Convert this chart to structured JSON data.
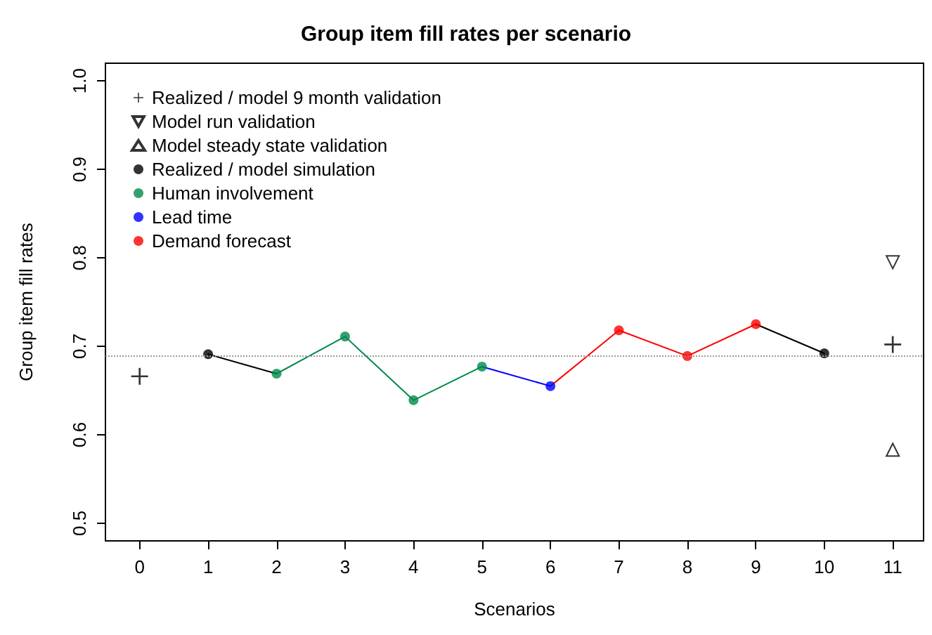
{
  "chart_data": {
    "type": "line",
    "title": "Group item fill rates per scenario",
    "xlabel": "Scenarios",
    "ylabel": "Group item fill rates",
    "xlim": [
      -0.5,
      11.45
    ],
    "xticks": [
      0,
      1,
      2,
      3,
      4,
      5,
      6,
      7,
      8,
      9,
      10,
      11
    ],
    "ylim": [
      0.48,
      1.02
    ],
    "yticks": [
      0.5,
      0.6,
      0.7,
      0.8,
      0.9,
      {
        "value": 1,
        "label": "1.0"
      }
    ],
    "grid": false,
    "legend": "top left",
    "ref_lines": [
      {
        "axis": "y",
        "value": 0.69,
        "color": "#999999",
        "line_style": "dotted"
      }
    ],
    "series": [
      {
        "type": "line",
        "marker": "none",
        "color": "#000000",
        "x": [
          1,
          2
        ],
        "values": [
          0.691,
          0.669
        ]
      },
      {
        "type": "line",
        "marker": "none",
        "color": "#00894a",
        "x": [
          2,
          3,
          4,
          5
        ],
        "values": [
          0.669,
          0.711,
          0.639,
          0.677
        ]
      },
      {
        "type": "line",
        "marker": "none",
        "color": "#0000ff",
        "x": [
          5,
          6
        ],
        "values": [
          0.677,
          0.655
        ]
      },
      {
        "type": "line",
        "marker": "none",
        "color": "#ff0000",
        "x": [
          6,
          7,
          8,
          9
        ],
        "values": [
          0.655,
          0.718,
          0.689,
          0.725
        ]
      },
      {
        "type": "line",
        "marker": "none",
        "color": "#000000",
        "x": [
          9,
          10
        ],
        "values": [
          0.725,
          0.692
        ]
      },
      {
        "type": "scatter",
        "name": "Realized / model 9 month validation",
        "marker": "cross",
        "color": "#000000",
        "x": [
          0,
          11
        ],
        "values": [
          0.666,
          0.702
        ]
      },
      {
        "type": "scatter",
        "name": "Model run validation",
        "marker": "triangle-down",
        "color": "#000000",
        "x": [
          11
        ],
        "values": [
          0.795
        ]
      },
      {
        "type": "scatter",
        "name": "Model steady state validation",
        "marker": "triangle",
        "color": "#000000",
        "x": [
          11
        ],
        "values": [
          0.583
        ]
      },
      {
        "type": "scatter",
        "name": "Realized / model simulation",
        "marker": "circle",
        "color": "#000000",
        "x": [
          1,
          10
        ],
        "values": [
          0.691,
          0.692
        ]
      },
      {
        "type": "scatter",
        "name": "Human involvement",
        "marker": "circle",
        "color": "#00894a",
        "x": [
          2,
          3,
          4,
          5
        ],
        "values": [
          0.669,
          0.711,
          0.639,
          0.677
        ]
      },
      {
        "type": "scatter",
        "name": "Lead time",
        "marker": "circle",
        "color": "#0000ff",
        "x": [
          6
        ],
        "values": [
          0.655
        ]
      },
      {
        "type": "scatter",
        "name": "Demand forecast",
        "marker": "circle",
        "color": "#ff0000",
        "x": [
          7,
          8,
          9
        ],
        "values": [
          0.718,
          0.689,
          0.725
        ]
      }
    ]
  }
}
